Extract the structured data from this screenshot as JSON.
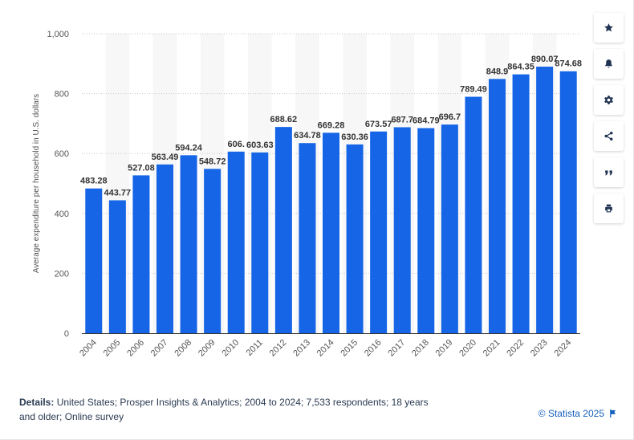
{
  "chart_data": {
    "type": "bar",
    "categories": [
      "2004",
      "2005",
      "2006",
      "2007",
      "2008",
      "2009",
      "2010",
      "2011",
      "2012",
      "2013",
      "2014",
      "2015",
      "2016",
      "2017",
      "2018",
      "2019",
      "2020",
      "2021",
      "2022",
      "2023",
      "2024"
    ],
    "values": [
      483.28,
      443.77,
      527.08,
      563.49,
      594.24,
      548.72,
      606.4,
      603.63,
      688.62,
      634.78,
      669.28,
      630.36,
      673.57,
      687.7,
      684.79,
      696.7,
      789.49,
      848.9,
      864.35,
      890.07,
      874.68
    ],
    "value_labels": [
      "483.28",
      "443.77",
      "527.08",
      "563.49",
      "594.24",
      "548.72",
      "606.",
      "603.63",
      "688.62",
      "634.78",
      "669.28",
      "630.36",
      "673.57",
      "687.7",
      "684.79",
      "696.7",
      "789.49",
      "848.9",
      "864.35",
      "890.07",
      "874.68"
    ],
    "ylabel": "Average expenditure per household in U.S. dollars",
    "xlabel": "",
    "ylim": [
      0,
      1000
    ],
    "yticks": [
      0,
      200,
      400,
      600,
      800,
      1000
    ],
    "ytick_labels": [
      "0",
      "200",
      "400",
      "600",
      "800",
      "1,000"
    ],
    "bar_color": "#1565e6",
    "grid": true
  },
  "toolbar": {
    "icons": [
      "star-icon",
      "bell-icon",
      "gear-icon",
      "share-icon",
      "quote-icon",
      "print-icon"
    ]
  },
  "footer": {
    "details_label": "Details:",
    "details_text": "United States; Prosper Insights & Analytics; 2004 to 2024; 7,533 respondents; 18 years and older; Online survey",
    "credit": "© Statista 2025"
  },
  "colors": {
    "bar": "#1565e6",
    "band": "#f7f7f7",
    "accent": "#1560bd"
  }
}
